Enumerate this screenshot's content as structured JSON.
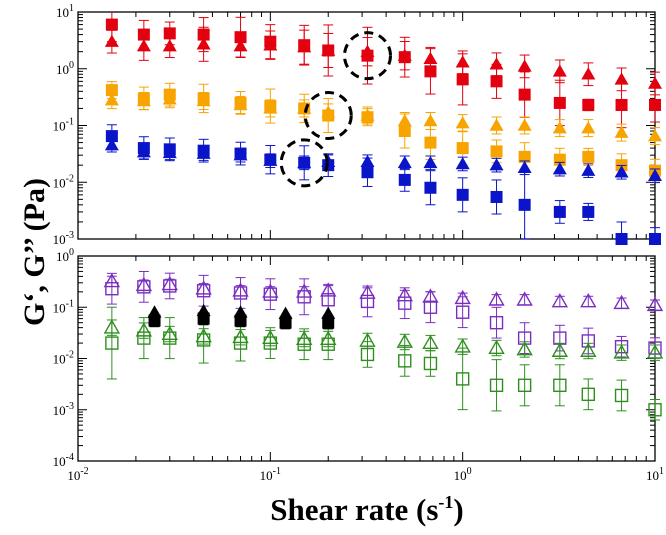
{
  "colors": {
    "red": "#e3000f",
    "orange": "#f7a400",
    "blue": "#0a14c8",
    "purple": "#7a2ec0",
    "green": "#2e8f1e",
    "black": "#000000"
  },
  "chart_data": [
    {
      "type": "scatter",
      "panel": "top",
      "xscale": "log",
      "yscale": "log",
      "xlim": [
        0.01,
        10
      ],
      "ylim": [
        0.001,
        10
      ],
      "yticks": [
        {
          "value": 10,
          "base": "10",
          "exp": "1"
        },
        {
          "value": 1,
          "base": "10",
          "exp": "0"
        },
        {
          "value": 0.1,
          "base": "10",
          "exp": "-1"
        },
        {
          "value": 0.01,
          "base": "10",
          "exp": "-2"
        },
        {
          "value": 0.001,
          "base": "10",
          "exp": "-3"
        }
      ],
      "series": [
        {
          "name": "G' red",
          "color": "red",
          "marker": "square-filled",
          "x": [
            0.015,
            0.022,
            0.03,
            0.045,
            0.07,
            0.1,
            0.15,
            0.2,
            0.32,
            0.5,
            0.68,
            1.0,
            1.5,
            2.1,
            3.2,
            4.5,
            6.7,
            10
          ],
          "y": [
            6,
            4,
            4.2,
            4,
            3.6,
            3,
            2.6,
            2.1,
            1.7,
            1.6,
            0.9,
            0.65,
            0.6,
            0.35,
            0.25,
            0.23,
            0.23,
            0.23
          ],
          "err": [
            0.3,
            0.25,
            0.2,
            0.3,
            0.35,
            0.3,
            0.35,
            0.45,
            0.5,
            0.35,
            0.4,
            0.45,
            0.3,
            0.4,
            0.4,
            0.1,
            0.4,
            0.3
          ]
        },
        {
          "name": "G'' red",
          "color": "red",
          "marker": "triangle-filled",
          "x": [
            0.015,
            0.022,
            0.03,
            0.045,
            0.07,
            0.1,
            0.15,
            0.2,
            0.32,
            0.5,
            0.68,
            1.0,
            1.5,
            2.1,
            3.2,
            4.5,
            6.7,
            10
          ],
          "y": [
            3,
            2.5,
            2.5,
            2.7,
            2.5,
            2.6,
            2.4,
            2.1,
            2,
            1.7,
            1.5,
            1.3,
            1.2,
            1.1,
            0.9,
            0.8,
            0.65,
            0.55
          ],
          "err": [
            0.2,
            0.25,
            0.2,
            0.3,
            0.2,
            0.25,
            0.3,
            0.3,
            0.25,
            0.25,
            0.2,
            0.2,
            0.2,
            0.2,
            0.2,
            0.2,
            0.2,
            0.2
          ]
        },
        {
          "name": "G' orange",
          "color": "orange",
          "marker": "square-filled",
          "x": [
            0.015,
            0.022,
            0.03,
            0.045,
            0.07,
            0.1,
            0.15,
            0.2,
            0.32,
            0.5,
            0.68,
            1.0,
            1.5,
            2.1,
            3.2,
            4.5,
            6.7,
            10
          ],
          "y": [
            0.42,
            0.3,
            0.35,
            0.3,
            0.25,
            0.22,
            0.2,
            0.15,
            0.14,
            0.08,
            0.05,
            0.04,
            0.035,
            0.028,
            0.025,
            0.028,
            0.02,
            0.016
          ],
          "err": [
            0.15,
            0.2,
            0.2,
            0.25,
            0.2,
            0.3,
            0.25,
            0.3,
            0.15,
            0.3,
            0.3,
            0.3,
            0.2,
            0.25,
            0.2,
            0.15,
            0.2,
            0.2
          ]
        },
        {
          "name": "G'' orange",
          "color": "orange",
          "marker": "triangle-filled",
          "x": [
            0.015,
            0.022,
            0.03,
            0.045,
            0.07,
            0.1,
            0.15,
            0.2,
            0.32,
            0.5,
            0.68,
            1.0,
            1.5,
            2.1,
            3.2,
            4.5,
            6.7,
            10
          ],
          "y": [
            0.28,
            0.27,
            0.29,
            0.27,
            0.23,
            0.2,
            0.2,
            0.17,
            0.15,
            0.12,
            0.12,
            0.11,
            0.1,
            0.1,
            0.09,
            0.09,
            0.075,
            0.065
          ],
          "err": [
            0.15,
            0.15,
            0.15,
            0.15,
            0.15,
            0.15,
            0.15,
            0.15,
            0.15,
            0.15,
            0.15,
            0.15,
            0.15,
            0.15,
            0.15,
            0.15,
            0.15,
            0.15
          ]
        },
        {
          "name": "G' blue",
          "color": "blue",
          "marker": "square-filled",
          "x": [
            0.015,
            0.022,
            0.03,
            0.045,
            0.07,
            0.1,
            0.15,
            0.2,
            0.32,
            0.5,
            0.68,
            1.0,
            1.5,
            2.1,
            3.2,
            4.5,
            6.7,
            10
          ],
          "y": [
            0.065,
            0.04,
            0.038,
            0.036,
            0.032,
            0.025,
            0.022,
            0.02,
            0.015,
            0.011,
            0.008,
            0.006,
            0.0055,
            0.004,
            0.003,
            0.003,
            0.001,
            0.001
          ],
          "err": [
            0.2,
            0.2,
            0.2,
            0.2,
            0.2,
            0.25,
            0.3,
            0.2,
            0.25,
            0.2,
            0.3,
            0.3,
            0.3,
            0.6,
            0.2,
            0.15,
            0.3,
            0.2
          ]
        },
        {
          "name": "G'' blue",
          "color": "blue",
          "marker": "triangle-filled",
          "x": [
            0.015,
            0.022,
            0.03,
            0.045,
            0.07,
            0.1,
            0.15,
            0.2,
            0.32,
            0.5,
            0.68,
            1.0,
            1.5,
            2.1,
            3.2,
            4.5,
            6.7,
            10
          ],
          "y": [
            0.045,
            0.034,
            0.033,
            0.032,
            0.03,
            0.024,
            0.022,
            0.023,
            0.023,
            0.022,
            0.022,
            0.021,
            0.02,
            0.018,
            0.017,
            0.016,
            0.015,
            0.013
          ],
          "err": [
            0.12,
            0.12,
            0.12,
            0.12,
            0.12,
            0.12,
            0.12,
            0.12,
            0.12,
            0.12,
            0.12,
            0.12,
            0.12,
            0.12,
            0.12,
            0.12,
            0.12,
            0.12
          ]
        }
      ],
      "annotations": [
        {
          "type": "dashed-circle",
          "x": 0.32,
          "y": 1.7
        },
        {
          "type": "dashed-circle",
          "x": 0.2,
          "y": 0.15
        },
        {
          "type": "dashed-circle",
          "x": 0.15,
          "y": 0.022
        }
      ]
    },
    {
      "type": "scatter",
      "panel": "bottom",
      "xscale": "log",
      "yscale": "log",
      "xlim": [
        0.01,
        10
      ],
      "ylim": [
        0.0001,
        1
      ],
      "yticks": [
        {
          "value": 1,
          "base": "10",
          "exp": "0"
        },
        {
          "value": 0.1,
          "base": "10",
          "exp": "-1"
        },
        {
          "value": 0.01,
          "base": "10",
          "exp": "-2"
        },
        {
          "value": 0.001,
          "base": "10",
          "exp": "-3"
        },
        {
          "value": 0.0001,
          "base": "10",
          "exp": "-4"
        }
      ],
      "xticks": [
        {
          "value": 0.01,
          "base": "10",
          "exp": "-2"
        },
        {
          "value": 0.1,
          "base": "10",
          "exp": "-1"
        },
        {
          "value": 1,
          "base": "10",
          "exp": "0"
        },
        {
          "value": 10,
          "base": "10",
          "exp": "1"
        }
      ],
      "series": [
        {
          "name": "G' purple",
          "color": "purple",
          "marker": "square-open",
          "x": [
            0.015,
            0.022,
            0.03,
            0.045,
            0.07,
            0.1,
            0.15,
            0.2,
            0.32,
            0.5,
            0.68,
            1.0,
            1.5,
            2.1,
            3.2,
            4.5,
            6.7,
            10
          ],
          "y": [
            0.23,
            0.25,
            0.26,
            0.21,
            0.19,
            0.18,
            0.16,
            0.14,
            0.13,
            0.12,
            0.1,
            0.08,
            0.05,
            0.025,
            0.025,
            0.022,
            0.017,
            0.016
          ],
          "err": [
            0.3,
            0.3,
            0.25,
            0.3,
            0.3,
            0.3,
            0.35,
            0.3,
            0.3,
            0.3,
            0.3,
            0.3,
            0.3,
            0.3,
            0.25,
            0.25,
            0.2,
            0.2
          ]
        },
        {
          "name": "G'' purple",
          "color": "purple",
          "marker": "triangle-open",
          "x": [
            0.015,
            0.022,
            0.03,
            0.045,
            0.07,
            0.1,
            0.15,
            0.2,
            0.32,
            0.5,
            0.68,
            1.0,
            1.5,
            2.1,
            3.2,
            4.5,
            6.7,
            10
          ],
          "y": [
            0.32,
            0.27,
            0.28,
            0.23,
            0.21,
            0.2,
            0.2,
            0.21,
            0.19,
            0.17,
            0.16,
            0.15,
            0.14,
            0.14,
            0.13,
            0.13,
            0.12,
            0.11
          ],
          "err": [
            0.1,
            0.1,
            0.1,
            0.1,
            0.1,
            0.1,
            0.1,
            0.1,
            0.1,
            0.1,
            0.1,
            0.1,
            0.1,
            0.1,
            0.1,
            0.1,
            0.1,
            0.1
          ]
        },
        {
          "name": "G' green",
          "color": "green",
          "marker": "square-open",
          "x": [
            0.015,
            0.022,
            0.03,
            0.045,
            0.07,
            0.1,
            0.15,
            0.2,
            0.32,
            0.5,
            0.68,
            1.0,
            1.5,
            2.1,
            3.2,
            4.5,
            6.7,
            10
          ],
          "y": [
            0.02,
            0.025,
            0.025,
            0.023,
            0.02,
            0.02,
            0.019,
            0.019,
            0.012,
            0.009,
            0.008,
            0.004,
            0.003,
            0.003,
            0.003,
            0.002,
            0.0019,
            0.001
          ],
          "err": [
            0.7,
            0.4,
            0.4,
            0.45,
            0.35,
            0.3,
            0.3,
            0.3,
            0.25,
            0.3,
            0.25,
            0.6,
            0.5,
            0.4,
            0.4,
            0.3,
            0.3,
            0.2
          ]
        },
        {
          "name": "G'' green",
          "color": "green",
          "marker": "triangle-open",
          "x": [
            0.015,
            0.022,
            0.03,
            0.045,
            0.07,
            0.1,
            0.15,
            0.2,
            0.32,
            0.5,
            0.68,
            1.0,
            1.5,
            2.1,
            3.2,
            4.5,
            6.7,
            10
          ],
          "y": [
            0.04,
            0.035,
            0.03,
            0.027,
            0.026,
            0.025,
            0.024,
            0.024,
            0.022,
            0.021,
            0.02,
            0.017,
            0.016,
            0.015,
            0.014,
            0.014,
            0.013,
            0.013
          ],
          "err": [
            0.15,
            0.15,
            0.15,
            0.15,
            0.15,
            0.15,
            0.15,
            0.15,
            0.15,
            0.15,
            0.15,
            0.15,
            0.15,
            0.15,
            0.15,
            0.15,
            0.15,
            0.15
          ]
        },
        {
          "name": "black",
          "color": "black",
          "marker": "square-filled",
          "x": [
            0.025,
            0.045,
            0.07,
            0.12,
            0.2
          ],
          "y": [
            0.055,
            0.06,
            0.055,
            0.05,
            0.05
          ],
          "err": [
            0.12,
            0.12,
            0.12,
            0.12,
            0.12
          ]
        },
        {
          "name": "black triangles",
          "color": "black",
          "marker": "triangle-filled",
          "x": [
            0.025,
            0.045,
            0.07,
            0.12,
            0.2
          ],
          "y": [
            0.08,
            0.085,
            0.08,
            0.075,
            0.075
          ],
          "err": [
            0,
            0,
            0,
            0,
            0
          ]
        }
      ]
    }
  ],
  "labels": {
    "ylabel": "G‘, G’’ (Pa)",
    "xlabel_main": "Shear rate (s",
    "xlabel_sup": "-1",
    "xlabel_close": ")"
  }
}
